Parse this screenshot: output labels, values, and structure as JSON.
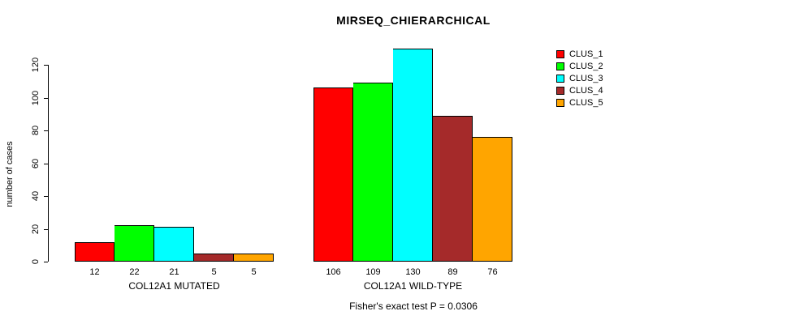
{
  "title": "MIRSEQ_CHIERARCHICAL",
  "footer": "Fisher's exact test P = 0.0306",
  "y_axis": {
    "label": "number of cases",
    "ticks": [
      0,
      20,
      40,
      60,
      80,
      100,
      120
    ]
  },
  "chart_data": {
    "type": "bar",
    "title": "MIRSEQ_CHIERARCHICAL",
    "xlabel": "",
    "ylabel": "number of cases",
    "ylim": [
      0,
      130
    ],
    "yticks": [
      0,
      20,
      40,
      60,
      80,
      100,
      120
    ],
    "grid": false,
    "legend_position": "right",
    "bar_value_labels_shown": true,
    "categories": [
      "COL12A1 MUTATED",
      "COL12A1 WILD-TYPE"
    ],
    "series": [
      {
        "name": "CLUS_1",
        "color": "#FF0000",
        "values": [
          12,
          106
        ]
      },
      {
        "name": "CLUS_2",
        "color": "#00FF00",
        "values": [
          22,
          109
        ]
      },
      {
        "name": "CLUS_3",
        "color": "#00FFFF",
        "values": [
          21,
          130
        ]
      },
      {
        "name": "CLUS_4",
        "color": "#A52A2A",
        "values": [
          5,
          89
        ]
      },
      {
        "name": "CLUS_5",
        "color": "#FFA500",
        "values": [
          5,
          76
        ]
      }
    ],
    "annotation": "Fisher's exact test P = 0.0306"
  }
}
